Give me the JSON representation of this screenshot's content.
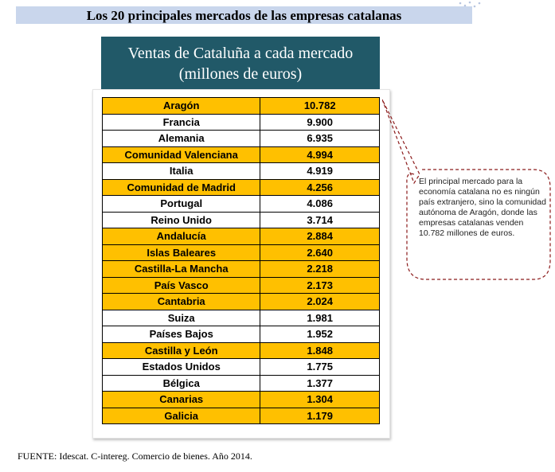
{
  "title": "Los 20 principales mercados de las empresas catalanas",
  "header": {
    "line1": "Ventas de Cataluña a cada mercado",
    "line2": "(millones de euros)"
  },
  "rows": [
    {
      "market": "Aragón",
      "value": "10.782",
      "highlight": true
    },
    {
      "market": "Francia",
      "value": "9.900",
      "highlight": false
    },
    {
      "market": "Alemania",
      "value": "6.935",
      "highlight": false
    },
    {
      "market": "Comunidad Valenciana",
      "value": "4.994",
      "highlight": true
    },
    {
      "market": "Italia",
      "value": "4.919",
      "highlight": false
    },
    {
      "market": "Comunidad de Madrid",
      "value": "4.256",
      "highlight": true
    },
    {
      "market": "Portugal",
      "value": "4.086",
      "highlight": false
    },
    {
      "market": "Reino Unido",
      "value": "3.714",
      "highlight": false
    },
    {
      "market": "Andalucía",
      "value": "2.884",
      "highlight": true
    },
    {
      "market": "Islas Baleares",
      "value": "2.640",
      "highlight": true
    },
    {
      "market": "Castilla-La Mancha",
      "value": "2.218",
      "highlight": true
    },
    {
      "market": "País Vasco",
      "value": "2.173",
      "highlight": true
    },
    {
      "market": "Cantabria",
      "value": "2.024",
      "highlight": true
    },
    {
      "market": "Suiza",
      "value": "1.981",
      "highlight": false
    },
    {
      "market": "Países Bajos",
      "value": "1.952",
      "highlight": false
    },
    {
      "market": "Castilla y León",
      "value": "1.848",
      "highlight": true
    },
    {
      "market": "Estados Unidos",
      "value": "1.775",
      "highlight": false
    },
    {
      "market": "Bélgica",
      "value": "1.377",
      "highlight": false
    },
    {
      "market": "Canarias",
      "value": "1.304",
      "highlight": true
    },
    {
      "market": "Galicia",
      "value": "1.179",
      "highlight": true
    }
  ],
  "callout": "El principal mercado para la economía catalana no es ningún país extranjero, sino la comunidad autónoma de Aragón, donde las empresas catalanas venden 10.782 millones de euros.",
  "source": "FUENTE: Idescat. C-intereg. Comercio de bienes. Año 2014.",
  "colors": {
    "title_bg": "#c9d6ec",
    "header_bg": "#215968",
    "highlight_row": "#ffc000",
    "callout_border": "#8b1a1a"
  }
}
